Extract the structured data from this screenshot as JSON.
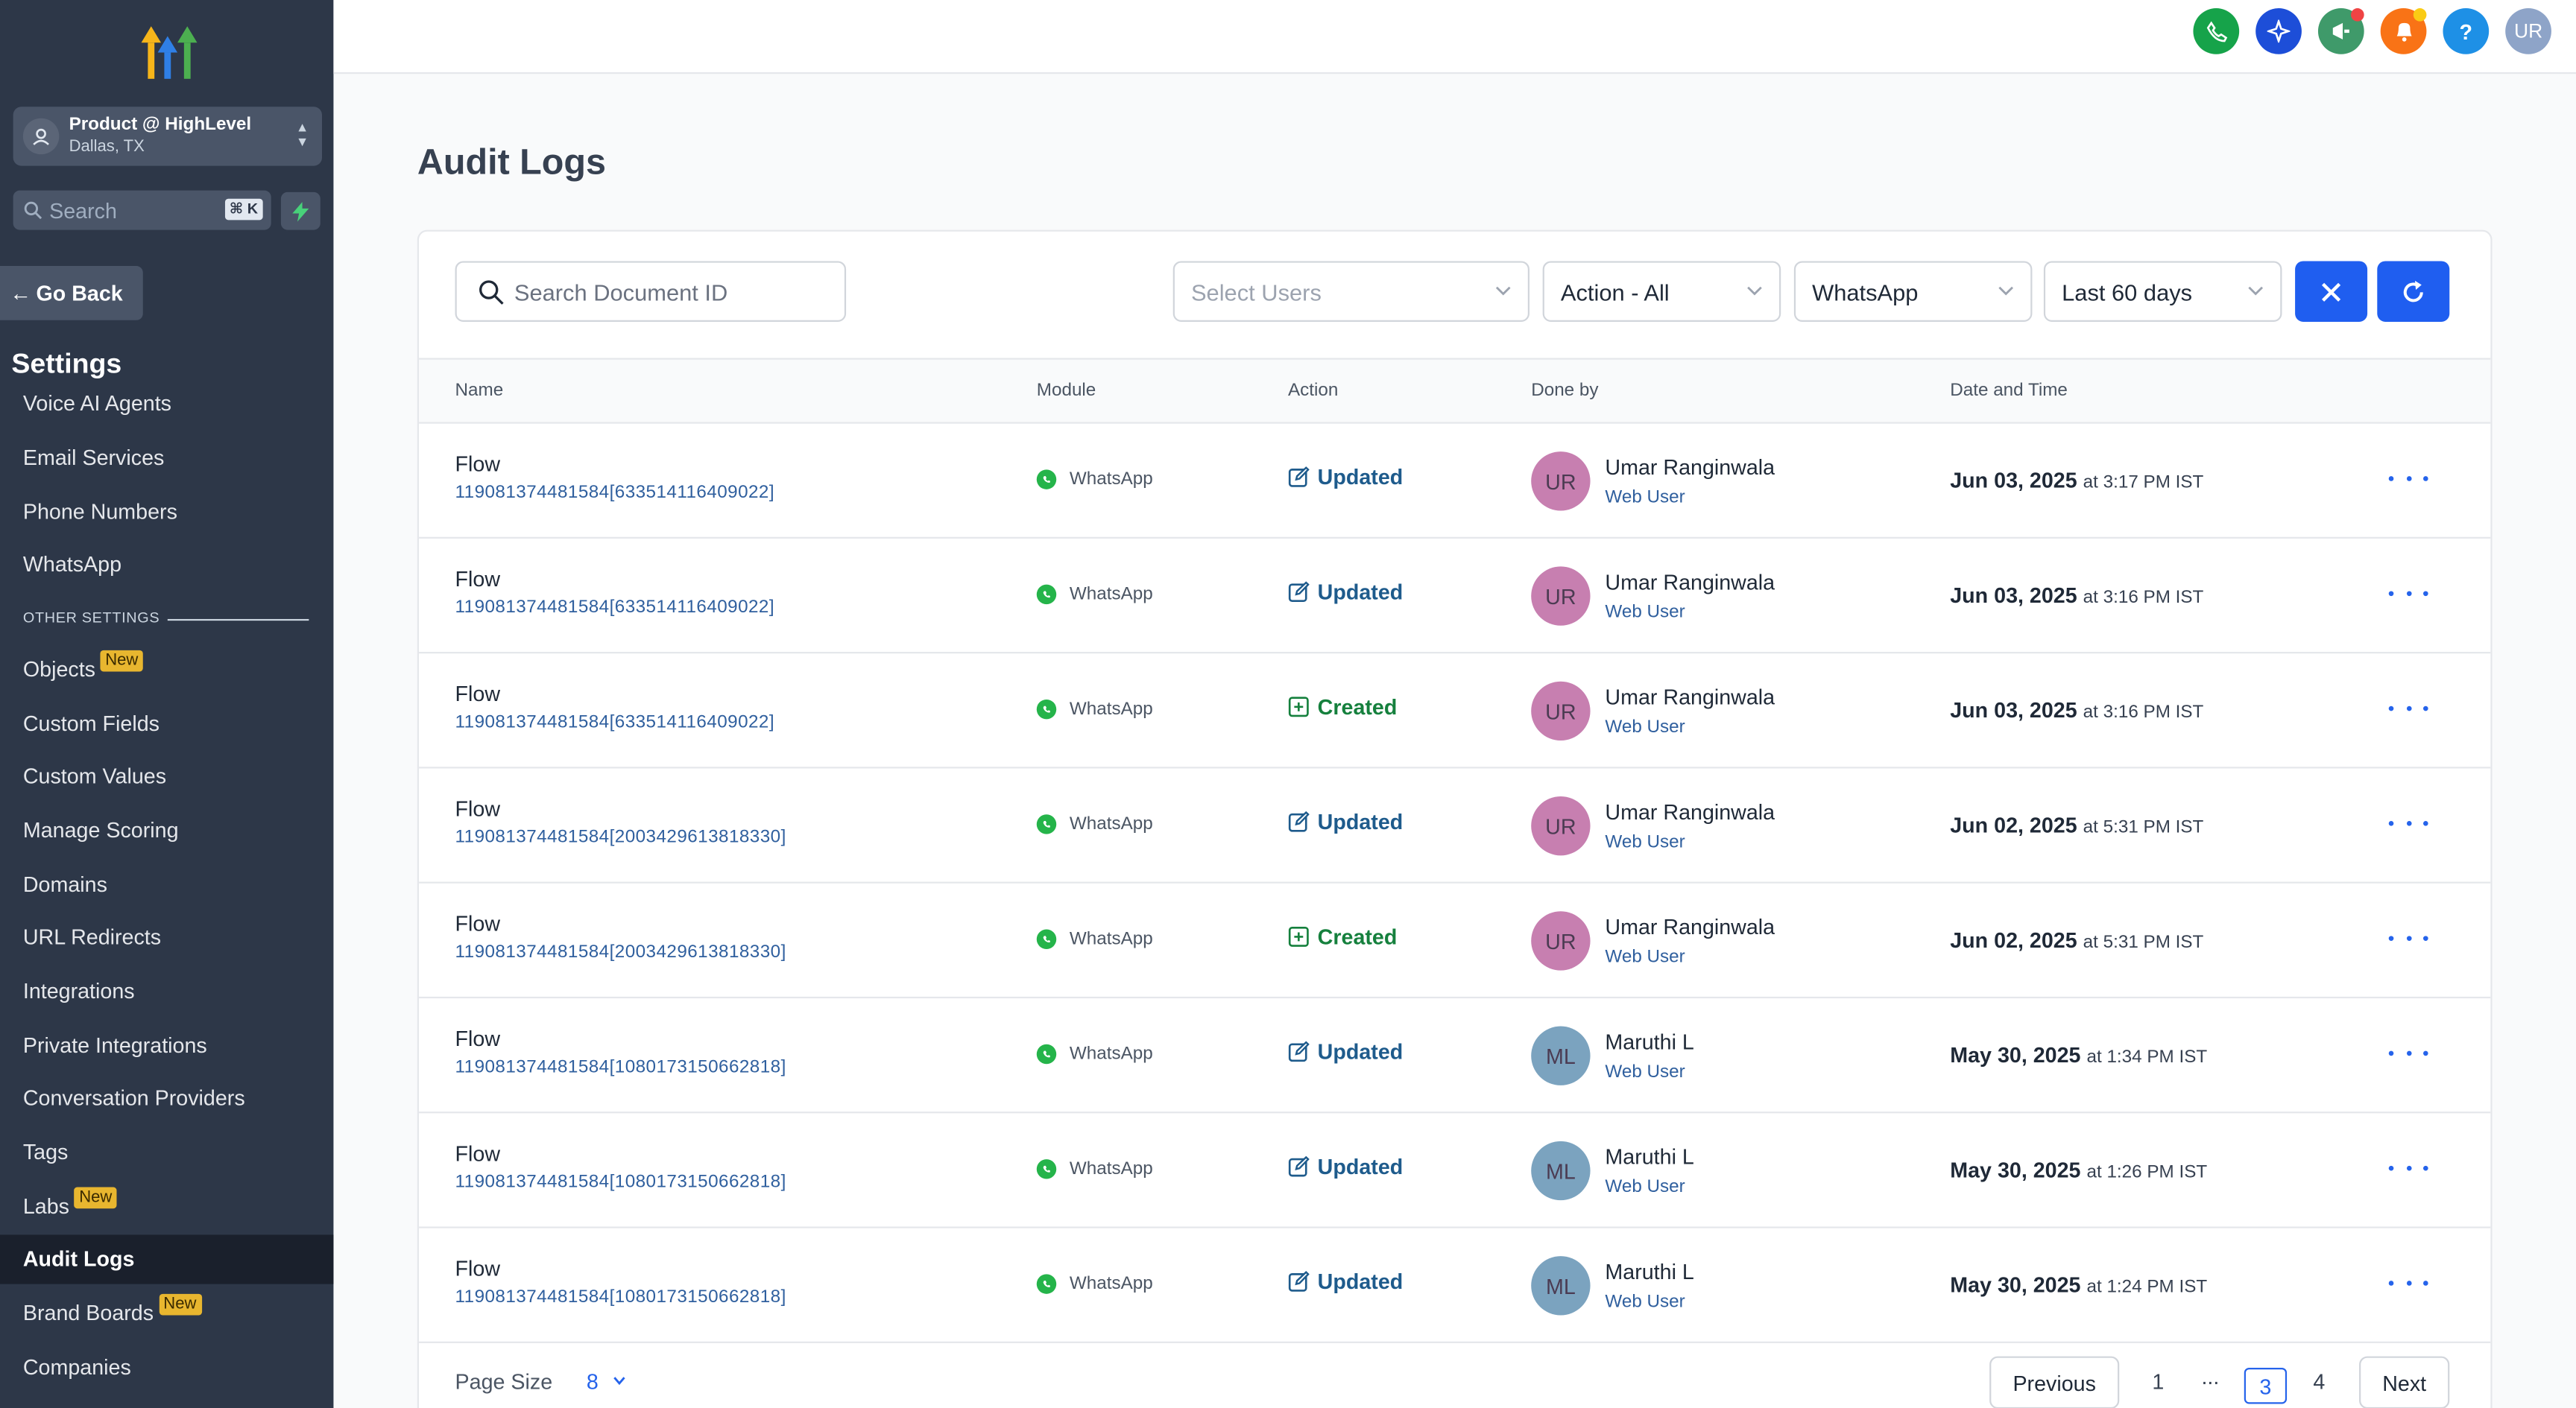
{
  "sidebar": {
    "account": {
      "name": "Product @ HighLevel",
      "location": "Dallas, TX"
    },
    "search": {
      "placeholder": "Search",
      "shortcut": "⌘ K"
    },
    "go_back": "Go Back",
    "settings_title": "Settings",
    "items_top": [
      "Voice AI Agents",
      "Email Services",
      "Phone Numbers",
      "WhatsApp"
    ],
    "section_label": "OTHER SETTINGS",
    "items": [
      {
        "label": "Objects",
        "badge": "New"
      },
      {
        "label": "Custom Fields"
      },
      {
        "label": "Custom Values"
      },
      {
        "label": "Manage Scoring"
      },
      {
        "label": "Domains"
      },
      {
        "label": "URL Redirects"
      },
      {
        "label": "Integrations"
      },
      {
        "label": "Private Integrations"
      },
      {
        "label": "Conversation Providers"
      },
      {
        "label": "Tags"
      },
      {
        "label": "Labs",
        "badge": "New"
      },
      {
        "label": "Audit Logs",
        "active": true
      },
      {
        "label": "Brand Boards",
        "badge": "New"
      },
      {
        "label": "Companies"
      }
    ]
  },
  "topbar": {
    "avatar": "UR",
    "help": "?"
  },
  "page": {
    "title": "Audit Logs"
  },
  "filters": {
    "doc_search_placeholder": "Search Document ID",
    "users_placeholder": "Select Users",
    "action": "Action - All",
    "module": "WhatsApp",
    "range": "Last 60 days"
  },
  "table": {
    "headers": [
      "Name",
      "Module",
      "Action",
      "Done by",
      "Date and Time"
    ],
    "rows": [
      {
        "name": "Flow",
        "id": "119081374481584[633514116409022]",
        "module": "WhatsApp",
        "action": "Updated",
        "user": "Umar Ranginwala",
        "initials": "UR",
        "role": "Web User",
        "date": "Jun 03, 2025",
        "time": "at 3:17 PM IST"
      },
      {
        "name": "Flow",
        "id": "119081374481584[633514116409022]",
        "module": "WhatsApp",
        "action": "Updated",
        "user": "Umar Ranginwala",
        "initials": "UR",
        "role": "Web User",
        "date": "Jun 03, 2025",
        "time": "at 3:16 PM IST"
      },
      {
        "name": "Flow",
        "id": "119081374481584[633514116409022]",
        "module": "WhatsApp",
        "action": "Created",
        "user": "Umar Ranginwala",
        "initials": "UR",
        "role": "Web User",
        "date": "Jun 03, 2025",
        "time": "at 3:16 PM IST"
      },
      {
        "name": "Flow",
        "id": "119081374481584[2003429613818330]",
        "module": "WhatsApp",
        "action": "Updated",
        "user": "Umar Ranginwala",
        "initials": "UR",
        "role": "Web User",
        "date": "Jun 02, 2025",
        "time": "at 5:31 PM IST"
      },
      {
        "name": "Flow",
        "id": "119081374481584[2003429613818330]",
        "module": "WhatsApp",
        "action": "Created",
        "user": "Umar Ranginwala",
        "initials": "UR",
        "role": "Web User",
        "date": "Jun 02, 2025",
        "time": "at 5:31 PM IST"
      },
      {
        "name": "Flow",
        "id": "119081374481584[1080173150662818]",
        "module": "WhatsApp",
        "action": "Updated",
        "user": "Maruthi L",
        "initials": "ML",
        "role": "Web User",
        "date": "May 30, 2025",
        "time": "at 1:34 PM IST"
      },
      {
        "name": "Flow",
        "id": "119081374481584[1080173150662818]",
        "module": "WhatsApp",
        "action": "Updated",
        "user": "Maruthi L",
        "initials": "ML",
        "role": "Web User",
        "date": "May 30, 2025",
        "time": "at 1:26 PM IST"
      },
      {
        "name": "Flow",
        "id": "119081374481584[1080173150662818]",
        "module": "WhatsApp",
        "action": "Updated",
        "user": "Maruthi L",
        "initials": "ML",
        "role": "Web User",
        "date": "May 30, 2025",
        "time": "at 1:24 PM IST"
      }
    ]
  },
  "pagination": {
    "page_size_label": "Page Size",
    "page_size": "8",
    "previous": "Previous",
    "next": "Next",
    "pages": [
      "1",
      "...",
      "3",
      "4"
    ],
    "current": "3"
  },
  "colors": {
    "accent": "#1f5ef0",
    "sidebar_bg": "#2d3748",
    "updated": "#1e5b8c",
    "created": "#15803d",
    "avatar_ur": "#c77fb0",
    "avatar_ml": "#7ba3bf"
  }
}
